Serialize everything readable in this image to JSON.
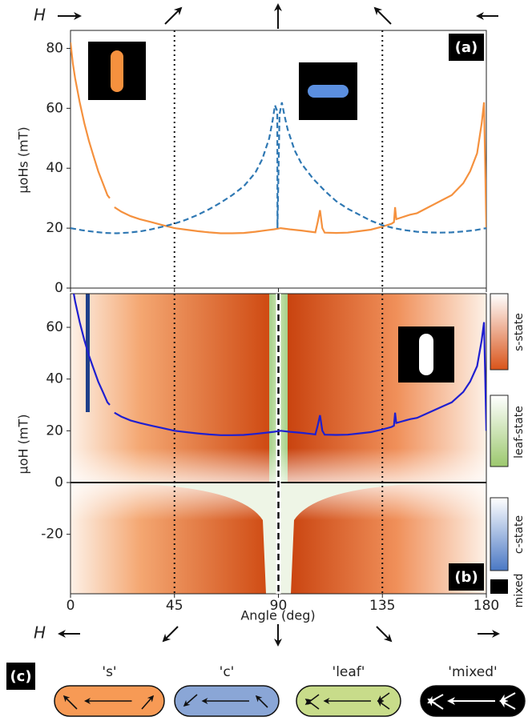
{
  "field_labels": [
    "H",
    "H"
  ],
  "chart_data": [
    {
      "type": "line",
      "panel_label": "(a)",
      "label_corner": "upper right",
      "ylabel": "μoHs (mT)",
      "xlim": [
        0,
        180
      ],
      "xticks": [
        0,
        45,
        90,
        135,
        180
      ],
      "xtick_labels": false,
      "ylim": [
        0,
        86
      ],
      "yticks": [
        0,
        20,
        40,
        60,
        80
      ],
      "vlines": [
        45,
        135
      ],
      "series": [
        {
          "color": "#f5913e",
          "style": "solid",
          "x": [
            0,
            1,
            2,
            4,
            6,
            8,
            10,
            12,
            14,
            16,
            17,
            18,
            19,
            22,
            26,
            30,
            35,
            40,
            45,
            50,
            55,
            60,
            65,
            70,
            75,
            80,
            85,
            88,
            91,
            95,
            100,
            104,
            106,
            107,
            108,
            109,
            110,
            115,
            120,
            125,
            130,
            135,
            139,
            140,
            140.5,
            141,
            143,
            147,
            150,
            155,
            160,
            165,
            170,
            173,
            176,
            178,
            179,
            180
          ],
          "values": [
            82,
            75,
            70,
            62,
            55,
            49,
            44,
            39,
            35,
            31,
            30,
            null,
            27,
            25.5,
            24,
            23,
            22,
            21,
            20,
            19.5,
            19,
            18.6,
            18.3,
            18.3,
            18.4,
            18.8,
            19.3,
            19.6,
            20,
            19.6,
            19.2,
            18.8,
            18.6,
            22,
            26,
            20,
            18.5,
            18.4,
            18.5,
            19,
            19.5,
            20.5,
            21.5,
            22,
            27,
            23,
            23.5,
            24.5,
            25,
            27,
            29,
            31,
            35,
            39,
            45,
            55,
            62,
            20
          ]
        },
        {
          "color": "#2f78b3",
          "style": "dashed",
          "x": [
            0,
            5,
            10,
            15,
            20,
            25,
            30,
            35,
            40,
            45,
            50,
            55,
            60,
            65,
            70,
            75,
            80,
            83,
            86,
            87.5,
            88.5,
            89.5,
            89.6,
            90.5,
            91.5,
            92.5,
            94,
            97,
            100,
            105,
            110,
            115,
            120,
            125,
            130,
            135,
            140,
            145,
            150,
            155,
            160,
            165,
            170,
            175,
            180
          ],
          "values": [
            20,
            19.3,
            18.8,
            18.4,
            18.3,
            18.5,
            18.9,
            19.6,
            20.5,
            21.5,
            22.8,
            24.4,
            26.3,
            28.5,
            31,
            34,
            38.5,
            43,
            50,
            56,
            61,
            59,
            20,
            58,
            62,
            58,
            53,
            46,
            41.5,
            36.5,
            32.5,
            29,
            26.5,
            24.5,
            22.5,
            21,
            20,
            19.3,
            18.8,
            18.6,
            18.5,
            18.6,
            18.9,
            19.3,
            20
          ]
        }
      ]
    },
    {
      "type": "line",
      "panel_label": "(b)",
      "label_corner": "lower right",
      "ylabel": "μoH (mT)",
      "xlabel": "Angle (deg)",
      "xlim": [
        0,
        180
      ],
      "xticks": [
        0,
        45,
        90,
        135,
        180
      ],
      "xtick_labels": true,
      "ylim": [
        -43,
        73
      ],
      "yticks": [
        -20,
        0,
        20,
        40,
        60
      ],
      "vlines": [
        45,
        135
      ],
      "center_line": 90,
      "colorbar_labels": [
        "s-state",
        "leaf-state",
        "c-state",
        "mixed"
      ],
      "series": [
        {
          "color": "#1f1fd0",
          "style": "solid",
          "x": [
            0,
            1,
            2,
            4,
            6,
            8,
            10,
            12,
            14,
            16,
            17,
            18,
            19,
            22,
            26,
            30,
            35,
            40,
            45,
            50,
            55,
            60,
            65,
            70,
            75,
            80,
            85,
            88,
            91,
            95,
            100,
            104,
            106,
            107,
            108,
            109,
            110,
            115,
            120,
            125,
            130,
            135,
            139,
            140,
            140.5,
            141,
            143,
            147,
            150,
            155,
            160,
            165,
            170,
            173,
            176,
            178,
            179,
            180
          ],
          "values": [
            82,
            75,
            70,
            62,
            55,
            49,
            44,
            39,
            35,
            31,
            30,
            null,
            27,
            25.5,
            24,
            23,
            22,
            21,
            20,
            19.5,
            19,
            18.6,
            18.3,
            18.3,
            18.4,
            18.8,
            19.3,
            19.6,
            20,
            19.6,
            19.2,
            18.8,
            18.6,
            22,
            26,
            20,
            18.5,
            18.4,
            18.5,
            19,
            19.5,
            20.5,
            21.5,
            22,
            27,
            23,
            23.5,
            24.5,
            25,
            27,
            29,
            31,
            35,
            39,
            45,
            55,
            62,
            20
          ]
        }
      ]
    }
  ],
  "panel_c": {
    "label": "(c)",
    "states": [
      "'s'",
      "'c'",
      "'leaf'",
      "'mixed'"
    ]
  }
}
